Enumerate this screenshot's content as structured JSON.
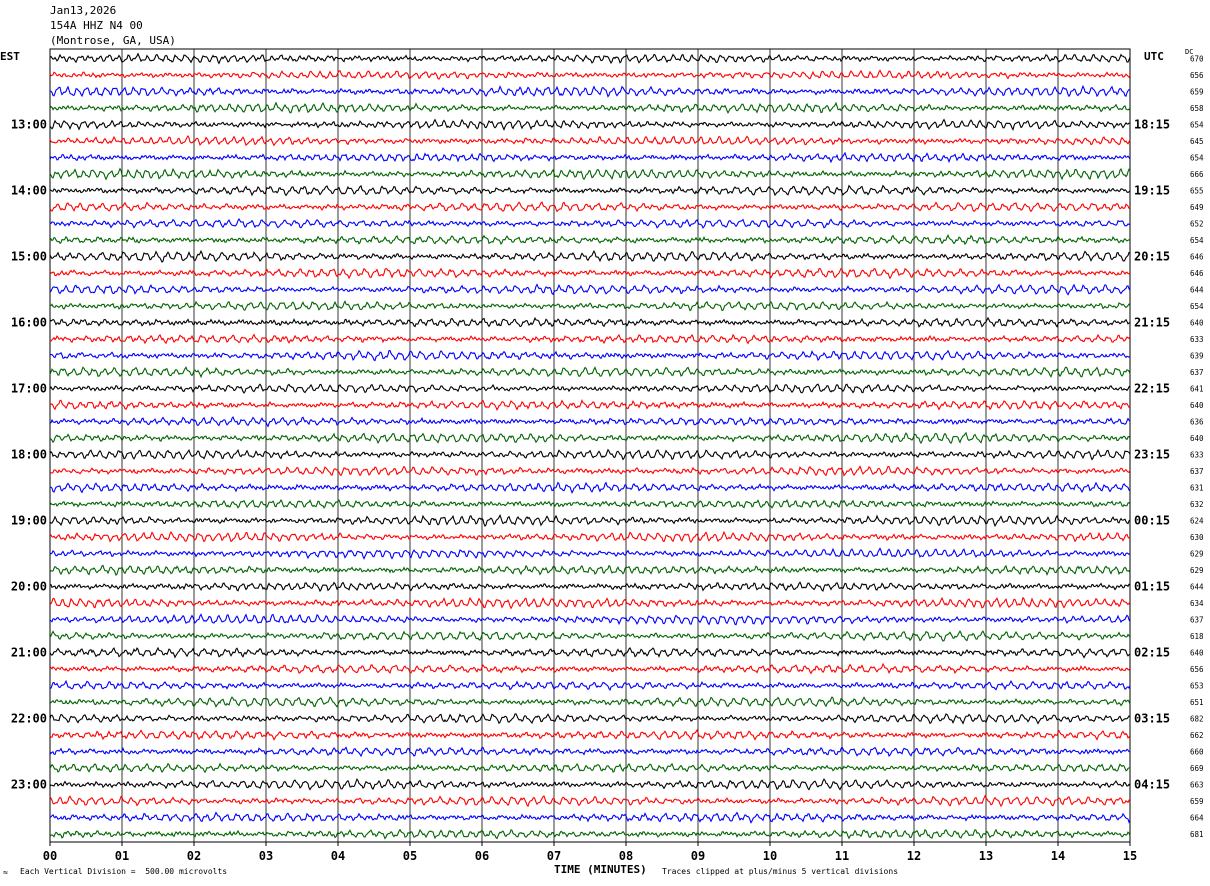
{
  "header": {
    "date": "Jan13,2026",
    "channel": "154A HHZ N4 00",
    "location": "(Montrose, GA, USA)"
  },
  "labels": {
    "left_timezone": "EST",
    "right_timezone": "UTC",
    "dc_header": "DC",
    "x_axis_title": "TIME (MINUTES)",
    "scale_note": "Each Vertical Division =  500.00 microvolts",
    "clip_note": "Traces clipped at plus/minus 5 vertical divisions",
    "corner_mark": "≈"
  },
  "colors": {
    "trace_cycle": [
      "#000000",
      "#ff0000",
      "#0000ff",
      "#006400"
    ],
    "grid": "#000000",
    "background": "#ffffff"
  },
  "chart_data": {
    "type": "line",
    "title": "",
    "xlabel": "TIME (MINUTES)",
    "ylabel": "",
    "xlim": [
      0,
      15
    ],
    "x_ticks": [
      "00",
      "01",
      "02",
      "03",
      "04",
      "05",
      "06",
      "07",
      "08",
      "09",
      "10",
      "11",
      "12",
      "13",
      "14",
      "15"
    ],
    "trace_count": 48,
    "trace_minutes": 15,
    "left_hour_labels": [
      {
        "trace": 4,
        "label": "13:00"
      },
      {
        "trace": 8,
        "label": "14:00"
      },
      {
        "trace": 12,
        "label": "15:00"
      },
      {
        "trace": 16,
        "label": "16:00"
      },
      {
        "trace": 20,
        "label": "17:00"
      },
      {
        "trace": 24,
        "label": "18:00"
      },
      {
        "trace": 28,
        "label": "19:00"
      },
      {
        "trace": 32,
        "label": "20:00"
      },
      {
        "trace": 36,
        "label": "21:00"
      },
      {
        "trace": 40,
        "label": "22:00"
      },
      {
        "trace": 44,
        "label": "23:00"
      }
    ],
    "right_hour_labels": [
      {
        "trace": 4,
        "label": "18:15"
      },
      {
        "trace": 8,
        "label": "19:15"
      },
      {
        "trace": 12,
        "label": "20:15"
      },
      {
        "trace": 16,
        "label": "21:15"
      },
      {
        "trace": 20,
        "label": "22:15"
      },
      {
        "trace": 24,
        "label": "23:15"
      },
      {
        "trace": 28,
        "label": "00:15"
      },
      {
        "trace": 32,
        "label": "01:15"
      },
      {
        "trace": 36,
        "label": "02:15"
      },
      {
        "trace": 40,
        "label": "03:15"
      },
      {
        "trace": 44,
        "label": "04:15"
      }
    ],
    "dc_offsets": [
      670,
      656,
      659,
      658,
      654,
      645,
      654,
      666,
      655,
      649,
      652,
      654,
      646,
      646,
      644,
      654,
      640,
      633,
      639,
      637,
      641,
      640,
      636,
      640,
      633,
      637,
      631,
      632,
      624,
      630,
      629,
      629,
      644,
      634,
      637,
      618,
      640,
      656,
      653,
      651,
      682,
      662,
      660,
      669,
      663,
      659,
      664,
      681
    ]
  }
}
